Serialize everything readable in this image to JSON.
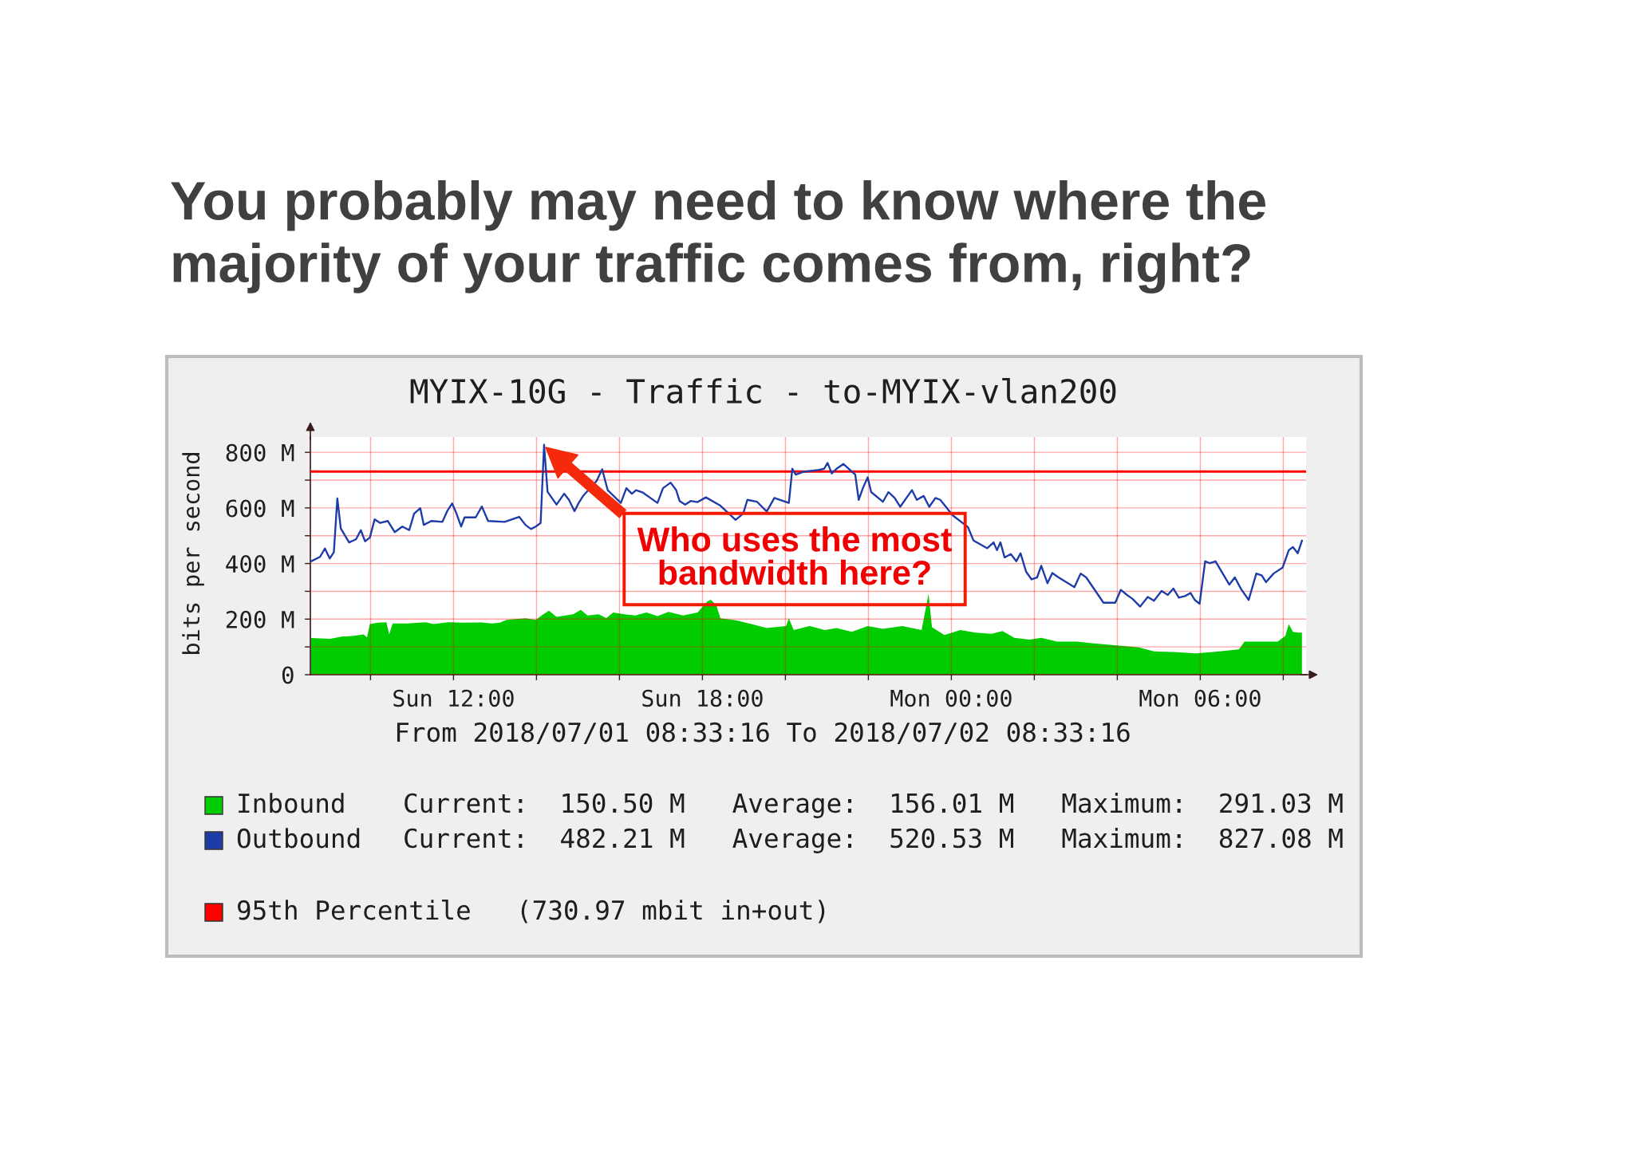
{
  "chart_data": {
    "type": "line",
    "title": "You probably may need to know where the majority of your traffic comes from, right?",
    "subtitle": "MYIX-10G - Traffic - to-MYIX-vlan200",
    "xlabel": "From 2018/07/01 08:33:16 To 2018/07/02 08:33:16",
    "ylabel": "bits per second",
    "xlim": [
      "2018-07-01T08:33",
      "2018-07-02T08:33"
    ],
    "xticks": [
      {
        "value": "2018-07-01T10:00",
        "label": null
      },
      {
        "value": "2018-07-01T12:00",
        "label": "Sun 12:00"
      },
      {
        "value": "2018-07-01T14:00",
        "label": null
      },
      {
        "value": "2018-07-01T16:00",
        "label": null
      },
      {
        "value": "2018-07-01T18:00",
        "label": "Sun 18:00"
      },
      {
        "value": "2018-07-01T20:00",
        "label": null
      },
      {
        "value": "2018-07-01T22:00",
        "label": null
      },
      {
        "value": "2018-07-02T00:00",
        "label": "Mon 00:00"
      },
      {
        "value": "2018-07-02T02:00",
        "label": null
      },
      {
        "value": "2018-07-02T04:00",
        "label": null
      },
      {
        "value": "2018-07-02T06:00",
        "label": "Mon 06:00"
      },
      {
        "value": "2018-07-02T08:00",
        "label": null
      }
    ],
    "ylim": [
      0,
      855
    ],
    "yticks": [
      0,
      {
        "value": 100,
        "label": null
      },
      {
        "value": 200,
        "label": "200 M"
      },
      {
        "value": 300,
        "label": null
      },
      {
        "value": 400,
        "label": "400 M"
      },
      {
        "value": 500,
        "label": null
      },
      {
        "value": 600,
        "label": "600 M"
      },
      {
        "value": 700,
        "label": null
      },
      {
        "value": 800,
        "label": "800 M"
      }
    ],
    "grid": true,
    "legend": "bottom",
    "series": [
      {
        "name": "Inbound",
        "type": "area",
        "color": "#00cc00",
        "x": [
          "2018-07-01T08:34",
          "2018-07-01T09:02",
          "2018-07-01T09:18",
          "2018-07-01T09:34",
          "2018-07-01T09:50",
          "2018-07-01T09:55",
          "2018-07-01T09:59",
          "2018-07-01T10:11",
          "2018-07-01T10:23",
          "2018-07-01T10:27",
          "2018-07-01T10:32",
          "2018-07-01T10:53",
          "2018-07-01T11:20",
          "2018-07-01T11:31",
          "2018-07-01T11:52",
          "2018-07-01T12:13",
          "2018-07-01T12:40",
          "2018-07-01T12:56",
          "2018-07-01T13:07",
          "2018-07-01T13:17",
          "2018-07-01T13:44",
          "2018-07-01T13:59",
          "2018-07-01T14:10",
          "2018-07-01T14:18",
          "2018-07-01T14:29",
          "2018-07-01T14:42",
          "2018-07-01T14:53",
          "2018-07-01T15:04",
          "2018-07-01T15:14",
          "2018-07-01T15:30",
          "2018-07-01T15:41",
          "2018-07-01T15:51",
          "2018-07-01T16:07",
          "2018-07-01T16:23",
          "2018-07-01T16:39",
          "2018-07-01T16:55",
          "2018-07-01T17:11",
          "2018-07-01T17:32",
          "2018-07-01T17:53",
          "2018-07-01T18:07",
          "2018-07-01T18:12",
          "2018-07-01T18:20",
          "2018-07-01T18:26",
          "2018-07-01T18:48",
          "2018-07-01T19:11",
          "2018-07-01T19:33",
          "2018-07-01T20:01",
          "2018-07-01T20:05",
          "2018-07-01T20:12",
          "2018-07-01T20:35",
          "2018-07-01T20:57",
          "2018-07-01T21:14",
          "2018-07-01T21:36",
          "2018-07-01T21:59",
          "2018-07-01T22:21",
          "2018-07-01T22:49",
          "2018-07-01T23:17",
          "2018-07-01T23:27",
          "2018-07-01T23:32",
          "2018-07-01T23:50",
          "2018-07-02T00:13",
          "2018-07-02T00:35",
          "2018-07-02T00:58",
          "2018-07-02T01:14",
          "2018-07-02T01:31",
          "2018-07-02T01:53",
          "2018-07-02T02:10",
          "2018-07-02T02:33",
          "2018-07-02T03:01",
          "2018-07-02T03:29",
          "2018-07-02T04:02",
          "2018-07-02T04:31",
          "2018-07-02T04:53",
          "2018-07-02T05:26",
          "2018-07-02T05:54",
          "2018-07-02T06:28",
          "2018-07-02T06:56",
          "2018-07-02T07:04",
          "2018-07-02T07:29",
          "2018-07-02T07:52",
          "2018-07-02T08:03",
          "2018-07-02T08:08",
          "2018-07-02T08:14",
          "2018-07-02T08:21",
          "2018-07-02T08:27"
        ],
        "values": [
          132,
          129,
          137,
          139,
          145,
          134,
          182,
          187,
          189,
          145,
          184,
          184,
          189,
          182,
          189,
          187,
          188,
          184,
          187,
          197,
          203,
          197,
          217,
          230,
          208,
          213,
          217,
          233,
          213,
          217,
          204,
          224,
          217,
          213,
          224,
          211,
          226,
          213,
          224,
          263,
          270,
          250,
          203,
          196,
          182,
          168,
          175,
          203,
          161,
          175,
          161,
          168,
          154,
          175,
          165,
          175,
          161,
          291,
          171,
          143,
          161,
          151,
          147,
          157,
          133,
          126,
          133,
          119,
          119,
          112,
          105,
          98,
          84,
          81,
          77,
          84,
          91,
          119,
          119,
          119,
          140,
          182,
          154,
          151,
          151
        ]
      },
      {
        "name": "Outbound",
        "color": "#1d3ca8",
        "x": [
          "2018-07-01T08:34",
          "2018-07-01T08:47",
          "2018-07-01T08:54",
          "2018-07-01T09:01",
          "2018-07-01T09:07",
          "2018-07-01T09:12",
          "2018-07-01T09:17",
          "2018-07-01T09:29",
          "2018-07-01T09:39",
          "2018-07-01T09:46",
          "2018-07-01T09:52",
          "2018-07-01T09:59",
          "2018-07-01T10:06",
          "2018-07-01T10:14",
          "2018-07-01T10:25",
          "2018-07-01T10:35",
          "2018-07-01T10:46",
          "2018-07-01T10:56",
          "2018-07-01T11:03",
          "2018-07-01T11:12",
          "2018-07-01T11:17",
          "2018-07-01T11:28",
          "2018-07-01T11:44",
          "2018-07-01T11:51",
          "2018-07-01T11:58",
          "2018-07-01T12:04",
          "2018-07-01T12:11",
          "2018-07-01T12:16",
          "2018-07-01T12:32",
          "2018-07-01T12:41",
          "2018-07-01T12:50",
          "2018-07-01T13:14",
          "2018-07-01T13:35",
          "2018-07-01T13:44",
          "2018-07-01T13:52",
          "2018-07-01T13:59",
          "2018-07-01T14:06",
          "2018-07-01T14:11",
          "2018-07-01T14:16",
          "2018-07-01T14:29",
          "2018-07-01T14:40",
          "2018-07-01T14:47",
          "2018-07-01T14:55",
          "2018-07-01T15:01",
          "2018-07-01T15:08",
          "2018-07-01T15:27",
          "2018-07-01T15:35",
          "2018-07-01T15:43",
          "2018-07-01T16:02",
          "2018-07-01T16:10",
          "2018-07-01T16:18",
          "2018-07-01T16:24",
          "2018-07-01T16:34",
          "2018-07-01T16:55",
          "2018-07-01T17:03",
          "2018-07-01T17:14",
          "2018-07-01T17:22",
          "2018-07-01T17:27",
          "2018-07-01T17:35",
          "2018-07-01T17:43",
          "2018-07-01T17:53",
          "2018-07-01T18:05",
          "2018-07-01T18:26",
          "2018-07-01T18:48",
          "2018-07-01T18:59",
          "2018-07-01T19:05",
          "2018-07-01T19:19",
          "2018-07-01T19:33",
          "2018-07-01T19:44",
          "2018-07-01T20:05",
          "2018-07-01T20:10",
          "2018-07-01T20:15",
          "2018-07-01T20:26",
          "2018-07-01T20:49",
          "2018-07-01T20:56",
          "2018-07-01T21:01",
          "2018-07-01T21:07",
          "2018-07-01T21:14",
          "2018-07-01T21:24",
          "2018-07-01T21:41",
          "2018-07-01T21:46",
          "2018-07-01T21:52",
          "2018-07-01T21:59",
          "2018-07-01T22:04",
          "2018-07-01T22:21",
          "2018-07-01T22:29",
          "2018-07-01T22:38",
          "2018-07-01T22:46",
          "2018-07-01T22:55",
          "2018-07-01T23:03",
          "2018-07-01T23:10",
          "2018-07-01T23:20",
          "2018-07-01T23:28",
          "2018-07-01T23:37",
          "2018-07-01T23:44",
          "2018-07-02T00:02",
          "2018-07-02T00:24",
          "2018-07-02T00:32",
          "2018-07-02T00:52",
          "2018-07-02T01:01",
          "2018-07-02T01:06",
          "2018-07-02T01:11",
          "2018-07-02T01:17",
          "2018-07-02T01:26",
          "2018-07-02T01:34",
          "2018-07-02T01:40",
          "2018-07-02T01:48",
          "2018-07-02T01:56",
          "2018-07-02T02:04",
          "2018-07-02T02:10",
          "2018-07-02T02:19",
          "2018-07-02T02:26",
          "2018-07-02T02:35",
          "2018-07-02T02:58",
          "2018-07-02T03:07",
          "2018-07-02T03:15",
          "2018-07-02T03:40",
          "2018-07-02T03:57",
          "2018-07-02T04:05",
          "2018-07-02T04:14",
          "2018-07-02T04:22",
          "2018-07-02T04:33",
          "2018-07-02T04:44",
          "2018-07-02T04:53",
          "2018-07-02T05:04",
          "2018-07-02T05:13",
          "2018-07-02T05:21",
          "2018-07-02T05:29",
          "2018-07-02T05:38",
          "2018-07-02T05:46",
          "2018-07-02T05:52",
          "2018-07-02T05:59",
          "2018-07-02T06:07",
          "2018-07-02T06:14",
          "2018-07-02T06:22",
          "2018-07-02T06:42",
          "2018-07-02T06:50",
          "2018-07-02T06:59",
          "2018-07-02T07:10",
          "2018-07-02T07:21",
          "2018-07-02T07:29",
          "2018-07-02T07:35",
          "2018-07-02T07:46",
          "2018-07-02T07:59",
          "2018-07-02T08:08",
          "2018-07-02T08:14",
          "2018-07-02T08:21",
          "2018-07-02T08:27"
        ],
        "values": [
          408,
          424,
          454,
          418,
          441,
          634,
          526,
          476,
          487,
          520,
          480,
          493,
          559,
          546,
          553,
          513,
          533,
          520,
          579,
          599,
          539,
          553,
          550,
          589,
          616,
          582,
          533,
          566,
          566,
          605,
          553,
          550,
          568,
          539,
          524,
          533,
          546,
          827,
          658,
          612,
          651,
          629,
          588,
          618,
          645,
          697,
          739,
          664,
          618,
          671,
          651,
          664,
          655,
          618,
          671,
          691,
          664,
          625,
          612,
          625,
          621,
          638,
          608,
          557,
          580,
          629,
          622,
          587,
          636,
          618,
          741,
          720,
          730,
          737,
          741,
          762,
          724,
          741,
          758,
          720,
          629,
          671,
          710,
          657,
          622,
          657,
          636,
          604,
          636,
          664,
          629,
          643,
          604,
          636,
          629,
          573,
          531,
          483,
          455,
          476,
          448,
          476,
          422,
          434,
          408,
          437,
          371,
          343,
          350,
          392,
          329,
          366,
          350,
          315,
          364,
          350,
          259,
          259,
          305,
          287,
          273,
          245,
          280,
          266,
          301,
          287,
          310,
          277,
          283,
          294,
          269,
          255,
          408,
          401,
          408,
          324,
          350,
          308,
          269,
          364,
          357,
          333,
          364,
          385,
          448,
          459,
          437,
          482
        ]
      }
    ],
    "ref_lines": [
      {
        "axis": "y",
        "value": 730.97,
        "label": "95th Percentile",
        "color": "#ff0000"
      }
    ],
    "annotations": [
      "Current:  150.50 M   Average:  156.01 M   Maximum:  291.03 M",
      "Current:  482.21 M   Average:  520.53 M   Maximum:  827.08 M",
      "(730.97 mbit in+out)",
      "Who uses the most bandwidth here?"
    ]
  }
}
